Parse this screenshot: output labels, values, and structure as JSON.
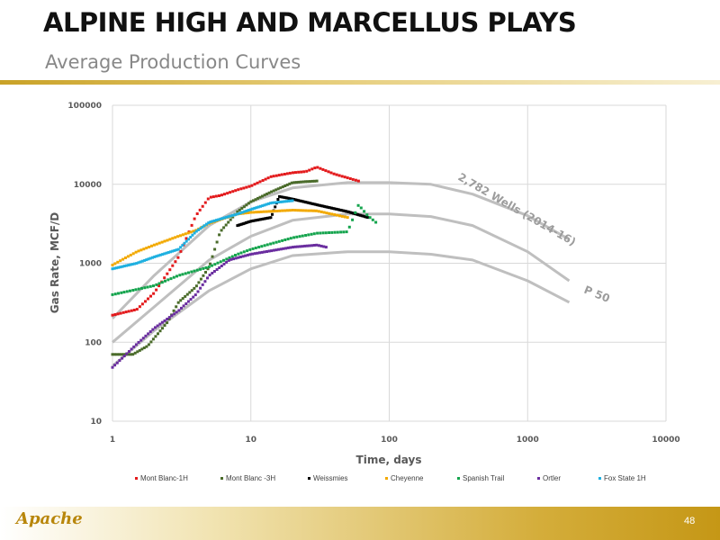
{
  "slide": {
    "title": "ALPINE HIGH AND MARCELLUS PLAYS",
    "subtitle": "Average Production Curves",
    "logo_text": "Apache",
    "page_number": "48"
  },
  "colors": {
    "accent_gold": "#c9a227",
    "mont_blanc_1h": "#e31a1c",
    "mont_blanc_3h": "#4a6b2a",
    "weissmies": "#000000",
    "cheyenne": "#f2a900",
    "spanish_trail": "#14a44d",
    "ortler": "#6a2d9f",
    "fox_state_1h": "#1fb0e0",
    "type_curves": "#bfbfbf"
  },
  "chart_data": {
    "type": "scatter",
    "x_scale": "log",
    "y_scale": "log",
    "xlabel": "Time, days",
    "ylabel": "Gas Rate, MCF/D",
    "xlim": [
      1,
      10000
    ],
    "ylim": [
      10,
      100000
    ],
    "x_ticks": [
      "1",
      "10",
      "100",
      "1000",
      "10000"
    ],
    "y_ticks": [
      "10",
      "100",
      "1000",
      "10000",
      "100000"
    ],
    "grid": true,
    "legend_position": "bottom",
    "series": [
      {
        "name": "Mont Blanc-1H",
        "color": "#e31a1c",
        "points": [
          [
            1,
            220
          ],
          [
            1.5,
            260
          ],
          [
            2,
            420
          ],
          [
            3,
            1200
          ],
          [
            4,
            4000
          ],
          [
            5,
            6800
          ],
          [
            6,
            7200
          ],
          [
            8,
            8500
          ],
          [
            10,
            9500
          ],
          [
            14,
            12500
          ],
          [
            20,
            14000
          ],
          [
            25,
            14500
          ],
          [
            30,
            16500
          ],
          [
            40,
            13500
          ],
          [
            60,
            11000
          ]
        ]
      },
      {
        "name": "Mont Blanc -3H",
        "color": "#4a6b2a",
        "points": [
          [
            1,
            70
          ],
          [
            1.4,
            70
          ],
          [
            1.8,
            90
          ],
          [
            2.5,
            180
          ],
          [
            3,
            320
          ],
          [
            4,
            500
          ],
          [
            5,
            900
          ],
          [
            6,
            2500
          ],
          [
            8,
            4500
          ],
          [
            10,
            6000
          ],
          [
            14,
            8000
          ],
          [
            20,
            10500
          ],
          [
            25,
            10800
          ],
          [
            30,
            11000
          ]
        ]
      },
      {
        "name": "Weissmies",
        "color": "#000000",
        "points": [
          [
            8,
            3000
          ],
          [
            10,
            3400
          ],
          [
            14,
            3800
          ],
          [
            16,
            7000
          ],
          [
            20,
            6500
          ],
          [
            30,
            5500
          ],
          [
            50,
            4500
          ],
          [
            70,
            3800
          ]
        ]
      },
      {
        "name": "Cheyenne",
        "color": "#f2a900",
        "points": [
          [
            1,
            950
          ],
          [
            1.5,
            1400
          ],
          [
            2,
            1700
          ],
          [
            3,
            2200
          ],
          [
            4,
            2600
          ],
          [
            5,
            3200
          ],
          [
            8,
            4200
          ],
          [
            10,
            4400
          ],
          [
            20,
            4700
          ],
          [
            30,
            4600
          ],
          [
            50,
            3800
          ]
        ]
      },
      {
        "name": "Spanish Trail",
        "color": "#14a44d",
        "points": [
          [
            1,
            400
          ],
          [
            2,
            520
          ],
          [
            3,
            700
          ],
          [
            5,
            900
          ],
          [
            8,
            1300
          ],
          [
            10,
            1500
          ],
          [
            20,
            2100
          ],
          [
            30,
            2400
          ],
          [
            50,
            2500
          ],
          [
            60,
            5500
          ],
          [
            70,
            4000
          ],
          [
            80,
            3300
          ]
        ]
      },
      {
        "name": "Ortler",
        "color": "#6a2d9f",
        "points": [
          [
            1,
            48
          ],
          [
            1.5,
            95
          ],
          [
            2,
            150
          ],
          [
            3,
            250
          ],
          [
            4,
            400
          ],
          [
            5,
            700
          ],
          [
            7,
            1100
          ],
          [
            10,
            1300
          ],
          [
            20,
            1600
          ],
          [
            30,
            1700
          ],
          [
            35,
            1600
          ]
        ]
      },
      {
        "name": "Fox State 1H",
        "color": "#1fb0e0",
        "points": [
          [
            1,
            850
          ],
          [
            1.5,
            1000
          ],
          [
            2,
            1200
          ],
          [
            3,
            1500
          ],
          [
            4,
            2500
          ],
          [
            5,
            3300
          ],
          [
            8,
            4200
          ],
          [
            10,
            4800
          ],
          [
            14,
            5800
          ],
          [
            20,
            6200
          ]
        ]
      }
    ],
    "type_curves": [
      {
        "points": [
          [
            1,
            200
          ],
          [
            2,
            700
          ],
          [
            5,
            3000
          ],
          [
            10,
            6000
          ],
          [
            20,
            9000
          ],
          [
            50,
            10500
          ],
          [
            100,
            10500
          ],
          [
            200,
            10000
          ],
          [
            400,
            7500
          ],
          [
            1000,
            4000
          ],
          [
            2000,
            2000
          ]
        ]
      },
      {
        "points": [
          [
            1,
            100
          ],
          [
            2,
            280
          ],
          [
            5,
            1100
          ],
          [
            10,
            2200
          ],
          [
            20,
            3500
          ],
          [
            50,
            4200
          ],
          [
            100,
            4200
          ],
          [
            200,
            3900
          ],
          [
            400,
            3000
          ],
          [
            1000,
            1400
          ],
          [
            2000,
            600
          ]
        ]
      },
      {
        "points": [
          [
            1,
            50
          ],
          [
            2,
            140
          ],
          [
            5,
            450
          ],
          [
            10,
            850
          ],
          [
            20,
            1250
          ],
          [
            50,
            1400
          ],
          [
            100,
            1400
          ],
          [
            200,
            1300
          ],
          [
            400,
            1100
          ],
          [
            1000,
            600
          ],
          [
            2000,
            320
          ]
        ]
      }
    ],
    "annotations": [
      {
        "text": "2,782 Wells (2014-16)"
      },
      {
        "text": "P 50"
      }
    ]
  }
}
